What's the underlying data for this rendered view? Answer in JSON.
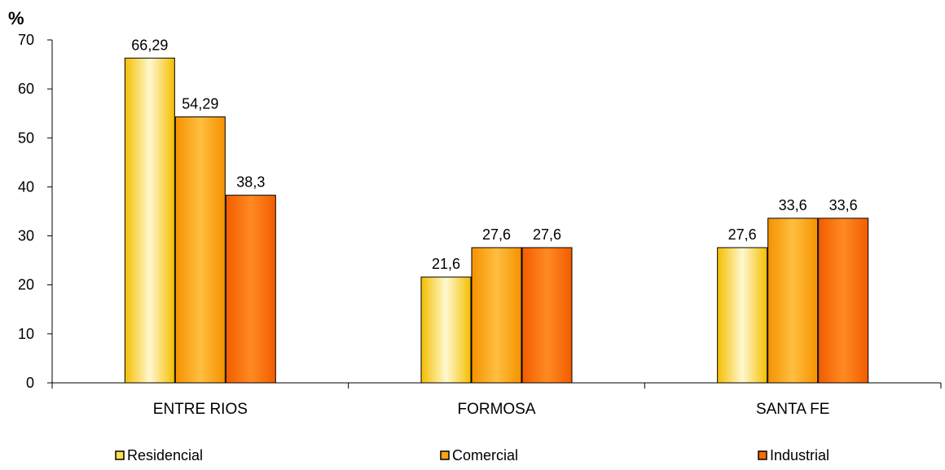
{
  "chart_data": {
    "type": "bar",
    "ylabel": "%",
    "ylim": [
      0,
      70
    ],
    "yticks": [
      0,
      10,
      20,
      30,
      40,
      50,
      60,
      70
    ],
    "categories": [
      "ENTRE RIOS",
      "FORMOSA",
      "SANTA FE"
    ],
    "series": [
      {
        "name": "Residencial",
        "values": [
          66.29,
          21.6,
          27.6
        ],
        "labels": [
          "66,29",
          "21,6",
          "27,6"
        ],
        "color": "#FFE04A"
      },
      {
        "name": "Comercial",
        "values": [
          54.29,
          27.6,
          33.6
        ],
        "labels": [
          "54,29",
          "27,6",
          "33,6"
        ],
        "color": "#FFA412"
      },
      {
        "name": "Industrial",
        "values": [
          38.3,
          27.6,
          33.6
        ],
        "labels": [
          "38,3",
          "27,6",
          "33,6"
        ],
        "color": "#FF6A00"
      }
    ],
    "grid": false,
    "legend_position": "bottom"
  }
}
